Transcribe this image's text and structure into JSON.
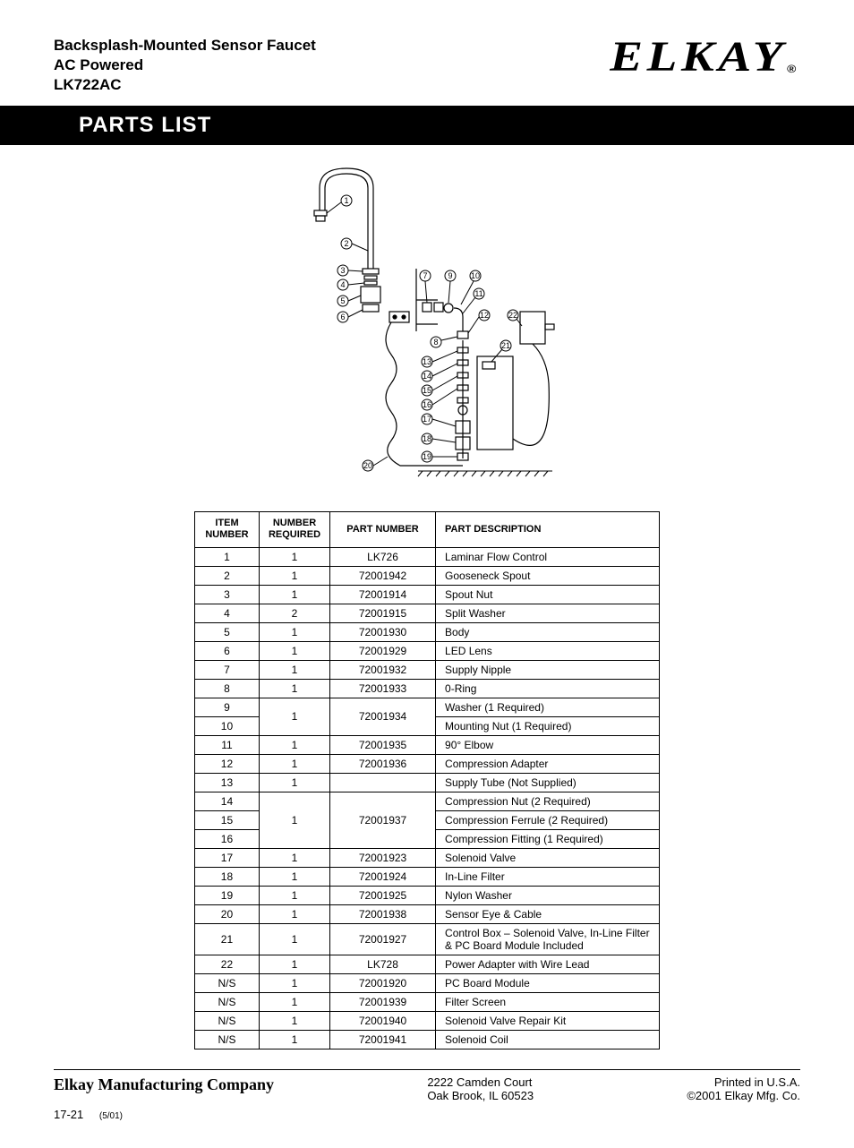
{
  "header": {
    "title_line1": "Backsplash-Mounted Sensor Faucet",
    "title_line2": "AC Powered",
    "title_line3": "LK722AC",
    "logo_text": "ELKAY",
    "logo_reg": "®"
  },
  "section_title": "PARTS LIST",
  "table": {
    "headers": {
      "item": "ITEM NUMBER",
      "req": "NUMBER REQUIRED",
      "part": "PART NUMBER",
      "desc": "PART DESCRIPTION"
    },
    "rows": [
      {
        "item": "1",
        "req": "1",
        "part": "LK726",
        "desc": "Laminar Flow Control"
      },
      {
        "item": "2",
        "req": "1",
        "part": "72001942",
        "desc": "Gooseneck Spout"
      },
      {
        "item": "3",
        "req": "1",
        "part": "72001914",
        "desc": "Spout Nut"
      },
      {
        "item": "4",
        "req": "2",
        "part": "72001915",
        "desc": "Split Washer"
      },
      {
        "item": "5",
        "req": "1",
        "part": "72001930",
        "desc": "Body"
      },
      {
        "item": "6",
        "req": "1",
        "part": "72001929",
        "desc": "LED Lens"
      },
      {
        "item": "7",
        "req": "1",
        "part": "72001932",
        "desc": "Supply Nipple"
      },
      {
        "item": "8",
        "req": "1",
        "part": "72001933",
        "desc": "0-Ring"
      },
      {
        "item": "9",
        "req": "",
        "part": "",
        "desc": "Washer (1 Required)",
        "merge_top_req": true
      },
      {
        "item": "10",
        "req": "1",
        "part": "72001934",
        "desc": "Mounting Nut (1 Required)",
        "merged_req_cell": true
      },
      {
        "item": "11",
        "req": "1",
        "part": "72001935",
        "desc": "90° Elbow"
      },
      {
        "item": "12",
        "req": "1",
        "part": "72001936",
        "desc": "Compression Adapter"
      },
      {
        "item": "13",
        "req": "1",
        "part": "",
        "desc": "Supply Tube (Not Supplied)"
      },
      {
        "item": "14",
        "req": "",
        "part": "",
        "desc": "Compression Nut (2 Required)",
        "merge_top_req": true
      },
      {
        "item": "15",
        "req": "1",
        "part": "72001937",
        "desc": "Compression Ferrule (2 Required)",
        "merged_req_cell": true,
        "middle": true
      },
      {
        "item": "16",
        "req": "",
        "part": "",
        "desc": "Compression Fitting (1 Required)",
        "merged_bottom": true
      },
      {
        "item": "17",
        "req": "1",
        "part": "72001923",
        "desc": "Solenoid Valve"
      },
      {
        "item": "18",
        "req": "1",
        "part": "72001924",
        "desc": "In-Line Filter"
      },
      {
        "item": "19",
        "req": "1",
        "part": "72001925",
        "desc": "Nylon Washer"
      },
      {
        "item": "20",
        "req": "1",
        "part": "72001938",
        "desc": "Sensor Eye & Cable"
      },
      {
        "item": "21",
        "req": "1",
        "part": "72001927",
        "desc": "Control Box – Solenoid Valve, In-Line Filter & PC Board Module Included"
      },
      {
        "item": "22",
        "req": "1",
        "part": "LK728",
        "desc": "Power Adapter with Wire Lead"
      },
      {
        "item": "N/S",
        "req": "1",
        "part": "72001920",
        "desc": "PC Board Module"
      },
      {
        "item": "N/S",
        "req": "1",
        "part": "72001939",
        "desc": "Filter Screen"
      },
      {
        "item": "N/S",
        "req": "1",
        "part": "72001940",
        "desc": "Solenoid Valve Repair Kit"
      },
      {
        "item": "N/S",
        "req": "1",
        "part": "72001941",
        "desc": "Solenoid Coil"
      }
    ]
  },
  "diagram": {
    "callouts": [
      "1",
      "2",
      "3",
      "4",
      "5",
      "6",
      "7",
      "8",
      "9",
      "10",
      "11",
      "12",
      "13",
      "14",
      "15",
      "16",
      "17",
      "18",
      "19",
      "20",
      "21",
      "22"
    ]
  },
  "footer": {
    "company": "Elkay Manufacturing Company",
    "addr1": "2222 Camden Court",
    "addr2": "Oak Brook, IL 60523",
    "printed": "Printed in U.S.A.",
    "copyright": "©2001 Elkay Mfg. Co.",
    "page": "17-21",
    "rev": "(5/01)"
  }
}
